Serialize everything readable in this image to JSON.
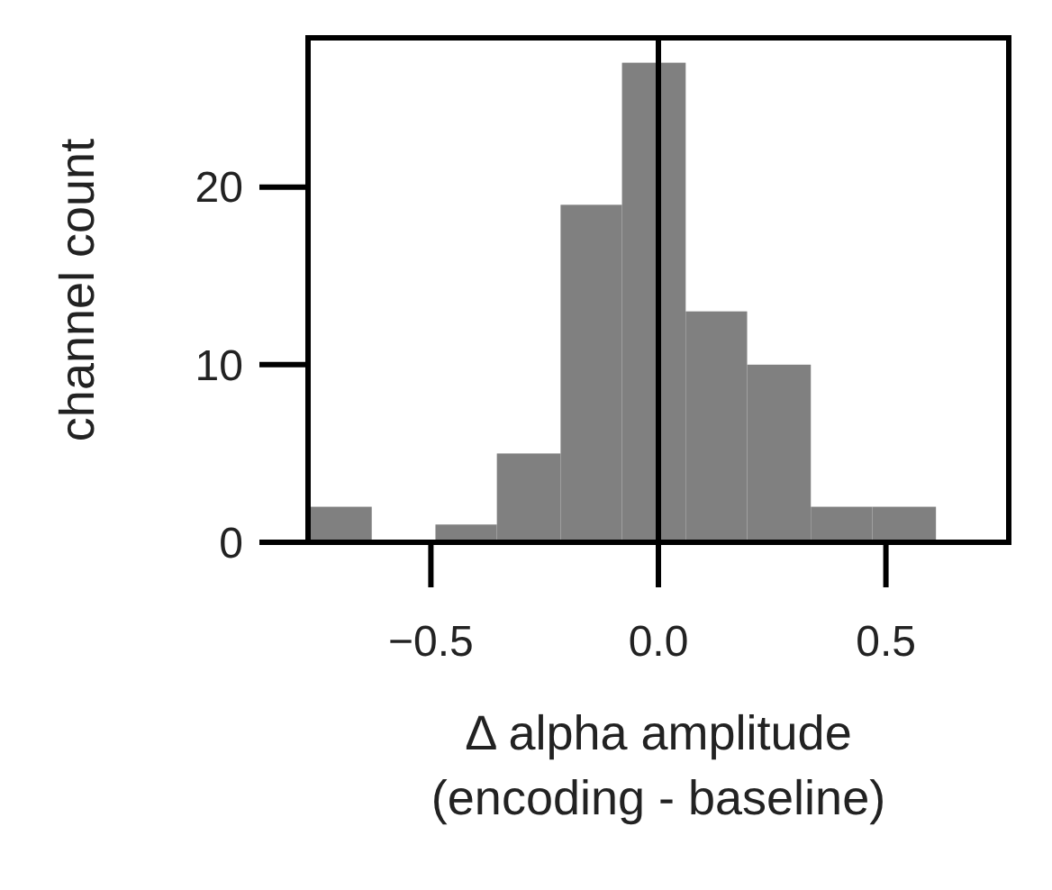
{
  "chart_data": {
    "type": "histogram",
    "ylabel": "channel count",
    "xlabel": "Δ alpha amplitude\n(encoding - baseline)",
    "bins": [
      -0.77,
      -0.63,
      -0.49,
      -0.355,
      -0.215,
      -0.08,
      0.06,
      0.195,
      0.335,
      0.47,
      0.61
    ],
    "values": [
      2,
      0,
      1,
      5,
      19,
      27,
      13,
      10,
      2,
      2
    ],
    "color": "#808080",
    "xlim": [
      -0.77,
      0.77
    ],
    "xticks": [
      {
        "value": -0.5,
        "label": "−0.5"
      },
      {
        "value": 0,
        "label": "0.0"
      },
      {
        "value": 0.5,
        "label": "0.5"
      }
    ],
    "ylim": [
      0,
      28.4
    ],
    "yticks": [
      0,
      10,
      20
    ],
    "ref_lines": [
      {
        "axis": "x",
        "value": 0,
        "color": "#000000"
      }
    ],
    "grid": false
  }
}
